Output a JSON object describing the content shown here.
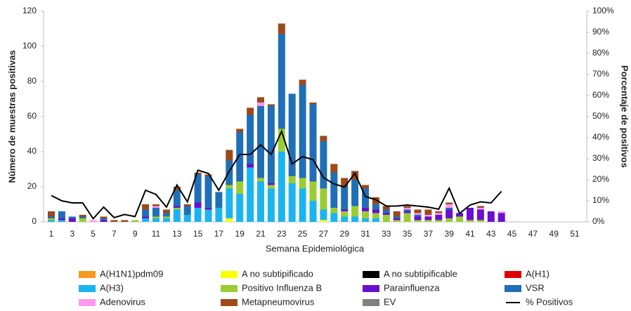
{
  "chart_data": {
    "type": "bar",
    "stacked": true,
    "x_label": "Semana Epidemiológica",
    "y_label": "Número de muestras positivas",
    "y2_label": "Porcentaje de positivos",
    "categories": [
      "1",
      null,
      "3",
      null,
      "5",
      null,
      "7",
      null,
      "9",
      null,
      "11",
      null,
      "13",
      null,
      "15",
      null,
      "17",
      null,
      "19",
      null,
      "21",
      null,
      "23",
      null,
      "25",
      null,
      "27",
      null,
      "29",
      null,
      "31",
      null,
      "33",
      null,
      "35",
      null,
      "37",
      null,
      "39",
      null,
      "41",
      null,
      "43",
      null,
      "45",
      null,
      "47",
      null,
      "49",
      null,
      "51",
      null
    ],
    "ylim": [
      0,
      120
    ],
    "yticks": [
      0,
      20,
      40,
      60,
      80,
      100,
      120
    ],
    "y2lim": [
      0,
      100
    ],
    "y2ticks": [
      {
        "value": 0,
        "label": "0%"
      },
      {
        "value": 10,
        "label": "10%"
      },
      {
        "value": 20,
        "label": "20%"
      },
      {
        "value": 30,
        "label": "30%"
      },
      {
        "value": 40,
        "label": "40%"
      },
      {
        "value": 50,
        "label": "50%"
      },
      {
        "value": 60,
        "label": "60%"
      },
      {
        "value": 70,
        "label": "70%"
      },
      {
        "value": 80,
        "label": "80%"
      },
      {
        "value": 90,
        "label": "90%"
      },
      {
        "value": 100,
        "label": "100%"
      }
    ],
    "grid": false,
    "legend": "bottom",
    "series": [
      {
        "name": "A(H1N1)pdm09",
        "color": "#f79a1e",
        "values": [
          0,
          0,
          0,
          0,
          0,
          0,
          0,
          0,
          0,
          0,
          0,
          0,
          0,
          0,
          0,
          0,
          0,
          0,
          0,
          0,
          0,
          0,
          0,
          0,
          0,
          0,
          0,
          0,
          0,
          0,
          0,
          0,
          0,
          0,
          0,
          0,
          0,
          0,
          0,
          0,
          0,
          0,
          0,
          0,
          null,
          null,
          null,
          null,
          null,
          null,
          null,
          null
        ]
      },
      {
        "name": "A no subtipificado",
        "color": "#ffff00",
        "values": [
          0,
          0,
          0,
          0,
          0,
          0,
          0,
          0,
          0,
          0,
          0,
          0,
          0,
          0,
          0,
          0,
          0,
          2,
          0,
          0,
          0,
          0,
          0,
          0,
          0,
          0,
          1,
          0,
          0,
          0,
          0,
          0,
          0,
          0,
          0,
          0,
          0,
          0,
          0,
          0,
          0,
          0,
          0,
          0,
          null,
          null,
          null,
          null,
          null,
          null,
          null,
          null
        ]
      },
      {
        "name": "A no subtipificable",
        "color": "#000000",
        "values": [
          0,
          0,
          0,
          0,
          0,
          0,
          0,
          0,
          0,
          0,
          0,
          0,
          0,
          0,
          0,
          0,
          0,
          0,
          0,
          0,
          0,
          0,
          0,
          0,
          0,
          0,
          0,
          0,
          0,
          0,
          0,
          0,
          0,
          0,
          0,
          0,
          0,
          0,
          0,
          0,
          0,
          0,
          0,
          0,
          null,
          null,
          null,
          null,
          null,
          null,
          null,
          null
        ]
      },
      {
        "name": "A(H1)",
        "color": "#e00000",
        "values": [
          0,
          0,
          0,
          0,
          0,
          0,
          0,
          0,
          0,
          0,
          0,
          0,
          0,
          0,
          0,
          0,
          0,
          0,
          0,
          0,
          0,
          0,
          0,
          0,
          0,
          0,
          0,
          0,
          0,
          0,
          0,
          0,
          0,
          0,
          0,
          0,
          0,
          0,
          0,
          0,
          0,
          0,
          0,
          0,
          null,
          null,
          null,
          null,
          null,
          null,
          null,
          null
        ]
      },
      {
        "name": "A(H3)",
        "color": "#1ab5f0",
        "values": [
          1,
          1,
          0,
          0,
          0,
          0,
          0,
          0,
          0,
          2,
          2,
          2,
          7,
          4,
          8,
          7,
          8,
          17,
          16,
          31,
          23,
          19,
          40,
          22,
          19,
          12,
          6,
          5,
          3,
          3,
          2,
          2,
          0,
          0,
          0,
          0,
          0,
          0,
          0,
          0,
          0,
          0,
          0,
          0,
          null,
          null,
          null,
          null,
          null,
          null,
          null,
          null
        ]
      },
      {
        "name": "Positivo Influenza  B",
        "color": "#9acd32",
        "values": [
          1,
          0,
          0,
          2,
          0,
          0,
          0,
          0,
          1,
          0,
          1,
          1,
          1,
          0,
          0,
          0,
          0,
          2,
          7,
          0,
          2,
          2,
          13,
          4,
          6,
          11,
          12,
          3,
          3,
          6,
          4,
          3,
          4,
          1,
          5,
          1,
          1,
          1,
          2,
          3,
          1,
          1,
          0,
          0,
          null,
          null,
          null,
          null,
          null,
          null,
          null,
          null
        ]
      },
      {
        "name": "Parainfluenza",
        "color": "#6a0fd0",
        "values": [
          0,
          1,
          2,
          0,
          0,
          1,
          0,
          0,
          0,
          1,
          0,
          0,
          1,
          0,
          3,
          1,
          0,
          0,
          0,
          2,
          0,
          1,
          0,
          0,
          0,
          0,
          0,
          0,
          1,
          0,
          2,
          2,
          1,
          1,
          1,
          2,
          2,
          3,
          5,
          2,
          7,
          6,
          6,
          5,
          null,
          null,
          null,
          null,
          null,
          null,
          null,
          null
        ]
      },
      {
        "name": "VSR",
        "color": "#1f6fb8",
        "values": [
          1,
          4,
          1,
          1,
          0,
          1,
          0,
          0,
          0,
          4,
          5,
          2,
          9,
          5,
          16,
          18,
          9,
          14,
          28,
          28,
          41,
          44,
          54,
          47,
          53,
          44,
          27,
          20,
          13,
          15,
          11,
          3,
          2,
          1,
          1,
          1,
          0,
          0,
          1,
          0,
          0,
          0,
          0,
          0,
          null,
          null,
          null,
          null,
          null,
          null,
          null,
          null
        ]
      },
      {
        "name": "Adenovirus",
        "color": "#ff99f0",
        "values": [
          0,
          0,
          0,
          0,
          1,
          0,
          0,
          0,
          0,
          0,
          1,
          0,
          0,
          0,
          0,
          0,
          0,
          0,
          0,
          0,
          2,
          0,
          0,
          0,
          0,
          0,
          0,
          0,
          0,
          0,
          0,
          0,
          0,
          0,
          1,
          1,
          1,
          1,
          2,
          0,
          0,
          1,
          0,
          1,
          null,
          null,
          null,
          null,
          null,
          null,
          null,
          null
        ]
      },
      {
        "name": "Metapneumovirus",
        "color": "#9c4a1a",
        "values": [
          3,
          0,
          0,
          1,
          0,
          1,
          1,
          1,
          0,
          3,
          1,
          2,
          2,
          1,
          1,
          1,
          0,
          6,
          2,
          4,
          3,
          1,
          6,
          0,
          3,
          1,
          3,
          5,
          5,
          5,
          2,
          4,
          2,
          3,
          1,
          2,
          3,
          1,
          1,
          0,
          0,
          1,
          0,
          0,
          null,
          null,
          null,
          null,
          null,
          null,
          null,
          null
        ]
      },
      {
        "name": "EV",
        "color": "#808080",
        "values": [
          0,
          0,
          0,
          0,
          0,
          0,
          0,
          0,
          0,
          0,
          0,
          0,
          0,
          0,
          0,
          0,
          0,
          0,
          0,
          0,
          0,
          0,
          0,
          0,
          0,
          0,
          0,
          0,
          0,
          0,
          0,
          0,
          0,
          0,
          0,
          0,
          0,
          0,
          0,
          0,
          0,
          0,
          0,
          0,
          null,
          null,
          null,
          null,
          null,
          null,
          null,
          null
        ]
      },
      {
        "name": "% Positivos",
        "color": "#000000",
        "type": "line",
        "axis": "y2",
        "values": [
          12.5,
          10,
          9,
          9,
          1.5,
          7,
          2,
          3.5,
          2.5,
          15,
          13,
          7,
          17.5,
          9.5,
          24.5,
          23,
          15,
          24,
          32,
          32,
          36.5,
          32,
          43,
          27.5,
          31,
          29.5,
          21,
          18,
          16.5,
          23,
          12,
          10.5,
          7.5,
          7.5,
          8,
          7.5,
          7,
          6,
          16,
          4,
          8,
          9.5,
          9,
          14.5,
          null,
          null,
          null,
          null,
          null,
          null,
          null,
          null
        ]
      }
    ]
  }
}
